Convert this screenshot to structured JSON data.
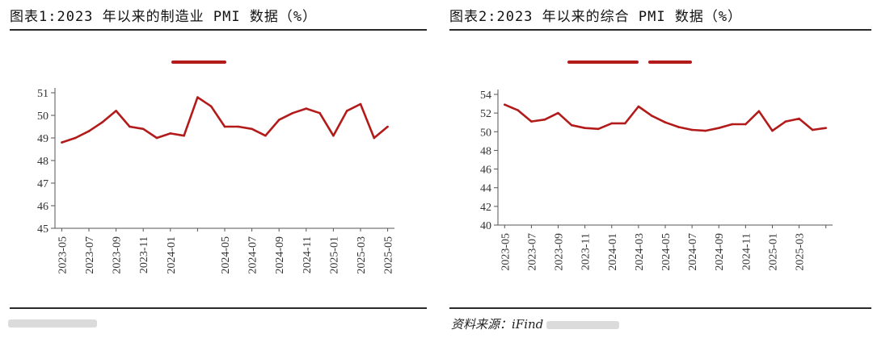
{
  "charts": [
    {
      "title": "图表1:2023 年以来的制造业 PMI 数据（%）",
      "source_label": "",
      "color": "#b31b1b",
      "chart_data": {
        "type": "line",
        "title": "图表1:2023 年以来的制造业 PMI 数据（%）",
        "xlabel": "",
        "ylabel": "",
        "ylim": [
          45,
          51
        ],
        "yticks": [
          "45",
          "46",
          "47",
          "48",
          "49",
          "50",
          "51"
        ],
        "grid": false,
        "legend": "top-center",
        "x": [
          "2023-05",
          "2023-06",
          "2023-07",
          "2023-08",
          "2023-09",
          "2023-10",
          "2023-11",
          "2023-12",
          "2024-01",
          "2024-02",
          "2024-03",
          "2024-04",
          "2024-05",
          "2024-06",
          "2024-07",
          "2024-08",
          "2024-09",
          "2024-10",
          "2024-11",
          "2024-12",
          "2025-01",
          "2025-02",
          "2025-03",
          "2025-04",
          "2025-05"
        ],
        "xtick_labels": [
          "2023-05",
          "2023-07",
          "2023-09",
          "2023-11",
          "2024-01",
          "",
          "2024-05",
          "2024-07",
          "2024-09",
          "2024-11",
          "2025-01",
          "2025-03",
          "2025-05"
        ],
        "series": [
          {
            "values": [
              48.8,
              49.0,
              49.3,
              49.7,
              50.2,
              49.5,
              49.4,
              49.0,
              49.2,
              49.1,
              50.8,
              50.4,
              49.5,
              49.5,
              49.4,
              49.1,
              49.8,
              50.1,
              50.3,
              50.1,
              49.1,
              50.2,
              50.5,
              49.0,
              49.5
            ]
          }
        ]
      }
    },
    {
      "title": "图表2:2023 年以来的综合 PMI 数据（%）",
      "source_label": "资料来源：iFind",
      "color": "#b31b1b",
      "chart_data": {
        "type": "line",
        "title": "图表2:2023 年以来的综合 PMI 数据（%）",
        "xlabel": "",
        "ylabel": "",
        "ylim": [
          40,
          54
        ],
        "yticks": [
          "40",
          "42",
          "44",
          "46",
          "48",
          "50",
          "52",
          "54"
        ],
        "grid": false,
        "legend": "top-center",
        "x": [
          "2023-05",
          "2023-06",
          "2023-07",
          "2023-08",
          "2023-09",
          "2023-10",
          "2023-11",
          "2023-12",
          "2024-01",
          "2024-02",
          "2024-03",
          "2024-04",
          "2024-05",
          "2024-06",
          "2024-07",
          "2024-08",
          "2024-09",
          "2024-10",
          "2024-11",
          "2024-12",
          "2025-01",
          "2025-02",
          "2025-03",
          "2025-04",
          "2025-05"
        ],
        "xtick_labels": [
          "2023-05",
          "2023-07",
          "2023-09",
          "2023-11",
          "2024-01",
          "2024-03",
          "2024-05",
          "2024-07",
          "2024-09",
          "2024-11",
          "2025-01",
          "2025-03",
          ""
        ],
        "series": [
          {
            "values": [
              52.9,
              52.3,
              51.1,
              51.3,
              52.0,
              50.7,
              50.4,
              50.3,
              50.9,
              50.9,
              52.7,
              51.7,
              51.0,
              50.5,
              50.2,
              50.1,
              50.4,
              50.8,
              50.8,
              52.2,
              50.1,
              51.1,
              51.4,
              50.2,
              50.4
            ]
          }
        ]
      }
    }
  ]
}
